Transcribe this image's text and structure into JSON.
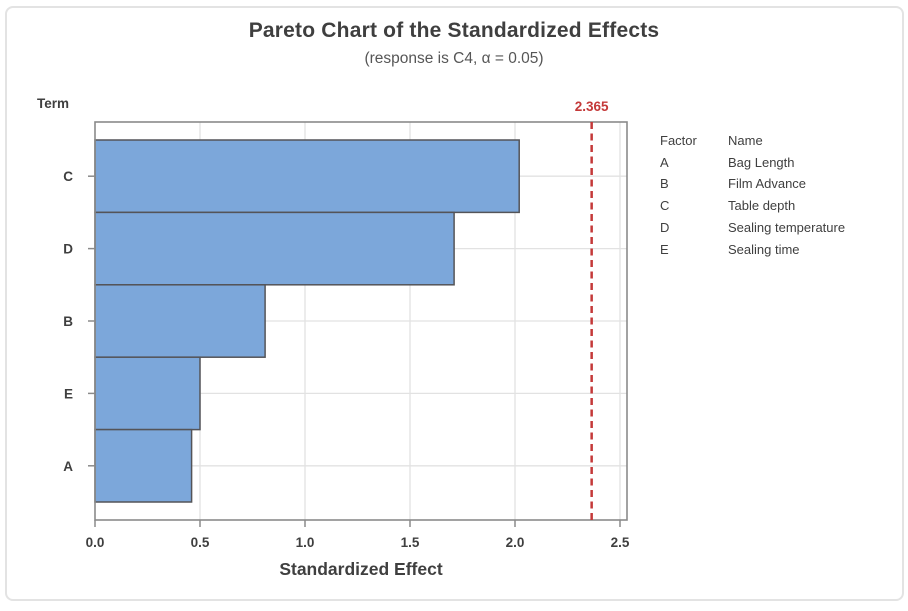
{
  "chart_data": {
    "type": "bar",
    "orientation": "horizontal",
    "title": "Pareto Chart of the Standardized Effects",
    "subtitle": "(response is C4, α = 0.05)",
    "response": "C4",
    "alpha": "0.05",
    "xlabel": "Standardized Effect",
    "ylabel": "Term",
    "categories": [
      "C",
      "D",
      "B",
      "E",
      "A"
    ],
    "values": [
      2.02,
      1.71,
      0.81,
      0.5,
      0.46
    ],
    "xlim": [
      0,
      2.5
    ],
    "x_tick_values": [
      0,
      0.5,
      1.0,
      1.5,
      2.0,
      2.5
    ],
    "x_tick_labels": [
      "0.0",
      "0.5",
      "1.0",
      "1.5",
      "2.0",
      "2.5"
    ],
    "reference_line": {
      "value": 2.365,
      "label": "2.365"
    },
    "grid": true,
    "legend_position": "right",
    "colors": {
      "bar_fill": "#7ca7da",
      "bar_stroke": "#545458",
      "reference": "#c43939",
      "frame": "#8a8a8a",
      "grid": "#e2e2e2",
      "text_dark": "#3f3f3f"
    }
  },
  "legend": {
    "headers": [
      "Factor",
      "Name"
    ],
    "rows": [
      {
        "factor": "A",
        "name": "Bag Length"
      },
      {
        "factor": "B",
        "name": "Film Advance"
      },
      {
        "factor": "C",
        "name": "Table depth"
      },
      {
        "factor": "D",
        "name": "Sealing temperature"
      },
      {
        "factor": "E",
        "name": "Sealing time"
      }
    ]
  }
}
